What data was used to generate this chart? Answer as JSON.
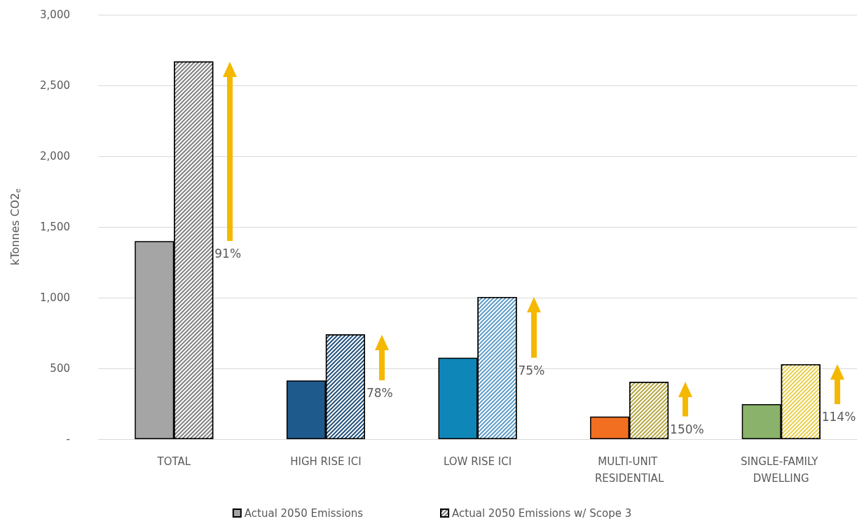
{
  "chart_data": {
    "type": "bar",
    "ylabel": "kTonnes CO2$_{e}$",
    "categories": [
      "TOTAL",
      "HIGH RISE ICI",
      "LOW RISE ICI",
      "MULTI-UNIT RESIDENTIAL",
      "SINGLE-FAMILY DWELLING"
    ],
    "series": [
      {
        "name": "Actual 2050 Emissions",
        "colors": [
          "#a5a5a5",
          "#1f5a8c",
          "#0e86b8",
          "#f26f21",
          "#8bb26a"
        ],
        "values": [
          1400,
          415,
          575,
          160,
          248
        ]
      },
      {
        "name": "Actual 2050 Emissions w/ Scope 3",
        "colors": [
          "#7f7f7f",
          "#1f4e79",
          "#5a9bc8",
          "#b5a642",
          "#e8cf4a"
        ],
        "values": [
          2670,
          740,
          1005,
          405,
          530
        ]
      }
    ],
    "annotations": [
      "91%",
      "78%",
      "75%",
      "150%",
      "114%"
    ],
    "ylim": [
      0,
      3000
    ],
    "yticks": [
      {
        "value": 0,
        "label": "-"
      },
      500,
      {
        "value": 1000,
        "label": "1,000"
      },
      {
        "value": 1500,
        "label": "1,500"
      },
      {
        "value": 2000,
        "label": "2,000"
      },
      {
        "value": 2500,
        "label": "2,500"
      },
      {
        "value": 3000,
        "label": "3,000"
      }
    ],
    "grid": "y",
    "legend": "bottom"
  }
}
